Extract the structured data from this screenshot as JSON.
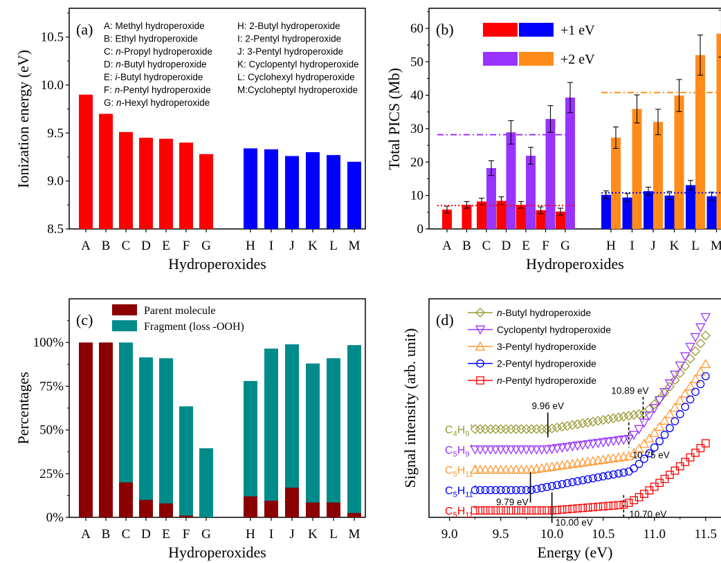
{
  "chart_data": [
    {
      "id": "a",
      "type": "bar",
      "panel_label": "(a)",
      "xlabel": "Hydroperoxides",
      "ylabel": "Ionization energy (eV)",
      "ylim": [
        8.5,
        10.8
      ],
      "yticks": [
        8.5,
        9.0,
        9.5,
        10.0,
        10.5
      ],
      "ytick_labels": [
        "8.5",
        "9.0",
        "9.5",
        "10.0",
        "10.5"
      ],
      "categories": [
        "A",
        "B",
        "C",
        "D",
        "E",
        "F",
        "G",
        "H",
        "I",
        "J",
        "K",
        "L",
        "M"
      ],
      "values": [
        9.9,
        9.7,
        9.51,
        9.45,
        9.44,
        9.4,
        9.28,
        9.34,
        9.33,
        9.26,
        9.3,
        9.27,
        9.2
      ],
      "colors": [
        "#ff0000",
        "#ff0000",
        "#ff0000",
        "#ff0000",
        "#ff0000",
        "#ff0000",
        "#ff0000",
        "#0000ff",
        "#0000ff",
        "#0000ff",
        "#0000ff",
        "#0000ff",
        "#0000ff"
      ],
      "legend": {
        "col1": [
          {
            "key": "A",
            "pre": "",
            "ital": "",
            "name": "Methyl hydroperoxide"
          },
          {
            "key": "B",
            "pre": "",
            "ital": "",
            "name": "Ethyl hydroperoxide"
          },
          {
            "key": "C",
            "pre": "",
            "ital": "n",
            "name": "-Propyl hydroperoxide"
          },
          {
            "key": "D",
            "pre": "",
            "ital": "n",
            "name": "-Butyl hydroperoxide"
          },
          {
            "key": "E",
            "pre": "",
            "ital": "i",
            "name": "-Butyl hydroperoxide"
          },
          {
            "key": "F",
            "pre": "",
            "ital": "n",
            "name": "-Pentyl hydroperoxide"
          },
          {
            "key": "G",
            "pre": "",
            "ital": "n",
            "name": "-Hexyl hydroperoxide"
          }
        ],
        "col2": [
          {
            "key": "H",
            "name": " 2-Butyl hydroperoxide"
          },
          {
            "key": "I",
            "name": "  2-Pentyl hydroperoxide"
          },
          {
            "key": "J",
            "name": "  3-Pentyl hydroperoxide"
          },
          {
            "key": "K",
            "name": " Cyclopentyl hydroperoxide"
          },
          {
            "key": "L",
            "name": " Cyclohexyl hydroperoxide"
          },
          {
            "key": "M",
            "name": "Cycloheptyl hydroperoxide"
          }
        ]
      }
    },
    {
      "id": "b",
      "type": "bar",
      "panel_label": "(b)",
      "xlabel": "Hydroperoxides",
      "ylabel": "Total PICS (Mb)",
      "ylim": [
        0,
        66
      ],
      "yticks": [
        0,
        10,
        20,
        30,
        40,
        50,
        60
      ],
      "ytick_labels": [
        "0",
        "10",
        "20",
        "30",
        "40",
        "50",
        "60"
      ],
      "categories": [
        "A",
        "B",
        "C",
        "D",
        "E",
        "F",
        "G",
        "H",
        "I",
        "J",
        "K",
        "L",
        "M"
      ],
      "series": [
        {
          "name": "+1 eV",
          "values": [
            5.8,
            7.2,
            8.2,
            8.4,
            7.2,
            5.6,
            5.2,
            10.2,
            9.4,
            11.3,
            10.0,
            13.1,
            9.8
          ],
          "errors": [
            1.0,
            1.0,
            1.0,
            1.2,
            1.0,
            1.0,
            1.0,
            1.2,
            1.2,
            1.2,
            1.2,
            1.4,
            1.2
          ]
        },
        {
          "name": "+2 eV",
          "values": [
            null,
            null,
            18.2,
            28.9,
            21.9,
            32.9,
            39.3,
            27.3,
            35.9,
            32.0,
            39.9,
            52.0,
            58.4
          ],
          "errors": [
            null,
            null,
            2.2,
            3.5,
            2.5,
            4.0,
            4.5,
            3.2,
            4.2,
            3.8,
            4.8,
            6.0,
            7.0
          ]
        }
      ],
      "colors_1ev": [
        "#ff0000",
        "#ff0000",
        "#ff0000",
        "#ff0000",
        "#ff0000",
        "#ff0000",
        "#ff0000",
        "#0000ff",
        "#0000ff",
        "#0000ff",
        "#0000ff",
        "#0000ff",
        "#0000ff"
      ],
      "colors_2ev": [
        "",
        "",
        "#9933ff",
        "#9933ff",
        "#9933ff",
        "#9933ff",
        "#9933ff",
        "#ff8c1a",
        "#ff8c1a",
        "#ff8c1a",
        "#ff8c1a",
        "#ff8c1a",
        "#ff8c1a"
      ],
      "reference_lines": [
        {
          "y": 7.0,
          "from": "A",
          "to": "G",
          "color": "#ff0000",
          "style": "dot"
        },
        {
          "y": 28.2,
          "from": "A",
          "to": "G",
          "color": "#9933ff",
          "style": "dashdot"
        },
        {
          "y": 10.8,
          "from": "H",
          "to": "M",
          "color": "#0000ff",
          "style": "dot"
        },
        {
          "y": 40.8,
          "from": "H",
          "to": "M",
          "color": "#ff8c1a",
          "style": "dashdot"
        }
      ],
      "legend_colors": [
        [
          "#ff0000",
          "#0000ff"
        ],
        [
          "#9933ff",
          "#ff8c1a"
        ]
      ]
    },
    {
      "id": "c",
      "type": "bar",
      "panel_label": "(c)",
      "xlabel": "Hydroperoxides",
      "ylabel": "Percentages",
      "ylim": [
        0,
        1.25
      ],
      "yticks": [
        0,
        0.25,
        0.5,
        0.75,
        1.0
      ],
      "ytick_labels": [
        "0%",
        "25%",
        "50%",
        "75%",
        "100%"
      ],
      "categories": [
        "A",
        "B",
        "C",
        "D",
        "E",
        "F",
        "G",
        "H",
        "I",
        "J",
        "K",
        "L",
        "M"
      ],
      "series": [
        {
          "name": "Parent molecule",
          "color": "#8b0000",
          "values": [
            1.0,
            1.0,
            0.2,
            0.1,
            0.08,
            0.01,
            0.0,
            0.12,
            0.095,
            0.17,
            0.085,
            0.085,
            0.025
          ]
        },
        {
          "name": "Fragment (loss -OOH)",
          "color": "#008b8b",
          "values": [
            0.0,
            0.0,
            1.0,
            0.915,
            0.91,
            0.635,
            0.395,
            0.78,
            0.965,
            0.99,
            0.88,
            0.91,
            0.985
          ]
        }
      ]
    },
    {
      "id": "d",
      "type": "scatter",
      "panel_label": "(d)",
      "xlabel": "Energy (eV)",
      "ylabel": "Signal intensity (arb. unit)",
      "xlim": [
        8.8,
        11.65
      ],
      "ylim": [
        0,
        1.0
      ],
      "xticks": [
        9.0,
        9.5,
        10.0,
        10.5,
        11.0,
        11.5
      ],
      "xtick_labels": [
        "9.0",
        "9.5",
        "10.0",
        "10.5",
        "11.0",
        "11.5"
      ],
      "series": [
        {
          "name": "n-Butyl hydroperoxide",
          "ital": "n",
          "rest": "-Butyl hydroperoxide",
          "color": "#999933",
          "marker": "diamond",
          "ion": "C4H9+",
          "ion_parts": [
            [
              "C",
              ""
            ],
            [
              "4",
              "sub"
            ],
            [
              "H",
              ""
            ],
            [
              "9",
              "sub"
            ],
            [
              "+",
              "sup"
            ]
          ],
          "base": 0.4,
          "onset": 9.96,
          "knee": 10.89,
          "slope": 0.083,
          "amp": 0.42,
          "end": 0.86,
          "xmin": 9.25,
          "xmax": 11.5
        },
        {
          "name": "Cyclopentyl hydroperoxide",
          "ital": "",
          "rest": "Cyclopentyl hydroperoxide",
          "color": "#9933ff",
          "marker": "tri_down",
          "ion": "C5H9+",
          "ion_parts": [
            [
              "C",
              ""
            ],
            [
              "5",
              "sub"
            ],
            [
              "H",
              ""
            ],
            [
              "9",
              "sub"
            ],
            [
              "+",
              "sup"
            ]
          ],
          "base": 0.3,
          "onset": 9.96,
          "knee": 10.75,
          "slope": 0.065,
          "amp": 0.62,
          "end": 0.95,
          "xmin": 9.25,
          "xmax": 11.5
        },
        {
          "name": "3-Pentyl hydroperoxide",
          "ital": "",
          "rest": "3-Pentyl hydroperoxide",
          "color": "#ff9933",
          "marker": "tri_up",
          "ion": "C5H11+",
          "ion_parts": [
            [
              "C",
              ""
            ],
            [
              "5",
              "sub"
            ],
            [
              "H",
              ""
            ],
            [
              "11",
              "sub"
            ],
            [
              "+",
              "sup"
            ]
          ],
          "base": 0.2,
          "onset": 9.79,
          "knee": 10.75,
          "slope": 0.07,
          "amp": 0.4,
          "end": 0.72,
          "xmin": 9.25,
          "xmax": 11.5
        },
        {
          "name": "2-Pentyl hydroperoxide",
          "ital": "",
          "rest": "2-Pentyl hydroperoxide",
          "color": "#0000ff",
          "marker": "circle",
          "ion": "C5H11+",
          "ion_parts": [
            [
              "C",
              ""
            ],
            [
              "5",
              "sub"
            ],
            [
              "H",
              ""
            ],
            [
              "11",
              "sub"
            ],
            [
              "+",
              "sup"
            ]
          ],
          "base": 0.1,
          "onset": 9.79,
          "knee": 10.75,
          "slope": 0.095,
          "amp": 0.47,
          "end": 0.66,
          "xmin": 9.25,
          "xmax": 11.5
        },
        {
          "name": "n-Pentyl hydroperoxide",
          "ital": "n",
          "rest": "-Pentyl hydroperoxide",
          "color": "#ff0000",
          "marker": "square",
          "ion": "C5H11+",
          "ion_parts": [
            [
              "C",
              ""
            ],
            [
              "5",
              "sub"
            ],
            [
              "H",
              ""
            ],
            [
              "11",
              "sub"
            ],
            [
              "+",
              "sup"
            ]
          ],
          "base": 0.0,
          "onset": 10.0,
          "knee": 10.7,
          "slope": 0.04,
          "amp": 0.15,
          "end": 0.33,
          "xmin": 9.25,
          "xmax": 11.5
        }
      ],
      "annotations": [
        {
          "text": "9.96 eV",
          "x": 9.96,
          "series": 0,
          "style": "solid",
          "label_side": "above"
        },
        {
          "text": "10.89 eV",
          "x": 10.89,
          "series": 0,
          "style": "dash",
          "label_side": "above-left"
        },
        {
          "text": "10.75 eV",
          "x": 10.75,
          "series": 1,
          "style": "dash",
          "label_side": "below"
        },
        {
          "text": "9.79 eV",
          "x": 9.79,
          "series": 3,
          "style": "solid",
          "label_side": "below-left"
        },
        {
          "text": "10.00 eV",
          "x": 10.0,
          "series": 4,
          "style": "solid",
          "label_side": "below-right"
        },
        {
          "text": "10.70 eV",
          "x": 10.7,
          "series": 4,
          "style": "dash",
          "label_side": "right"
        }
      ]
    }
  ]
}
